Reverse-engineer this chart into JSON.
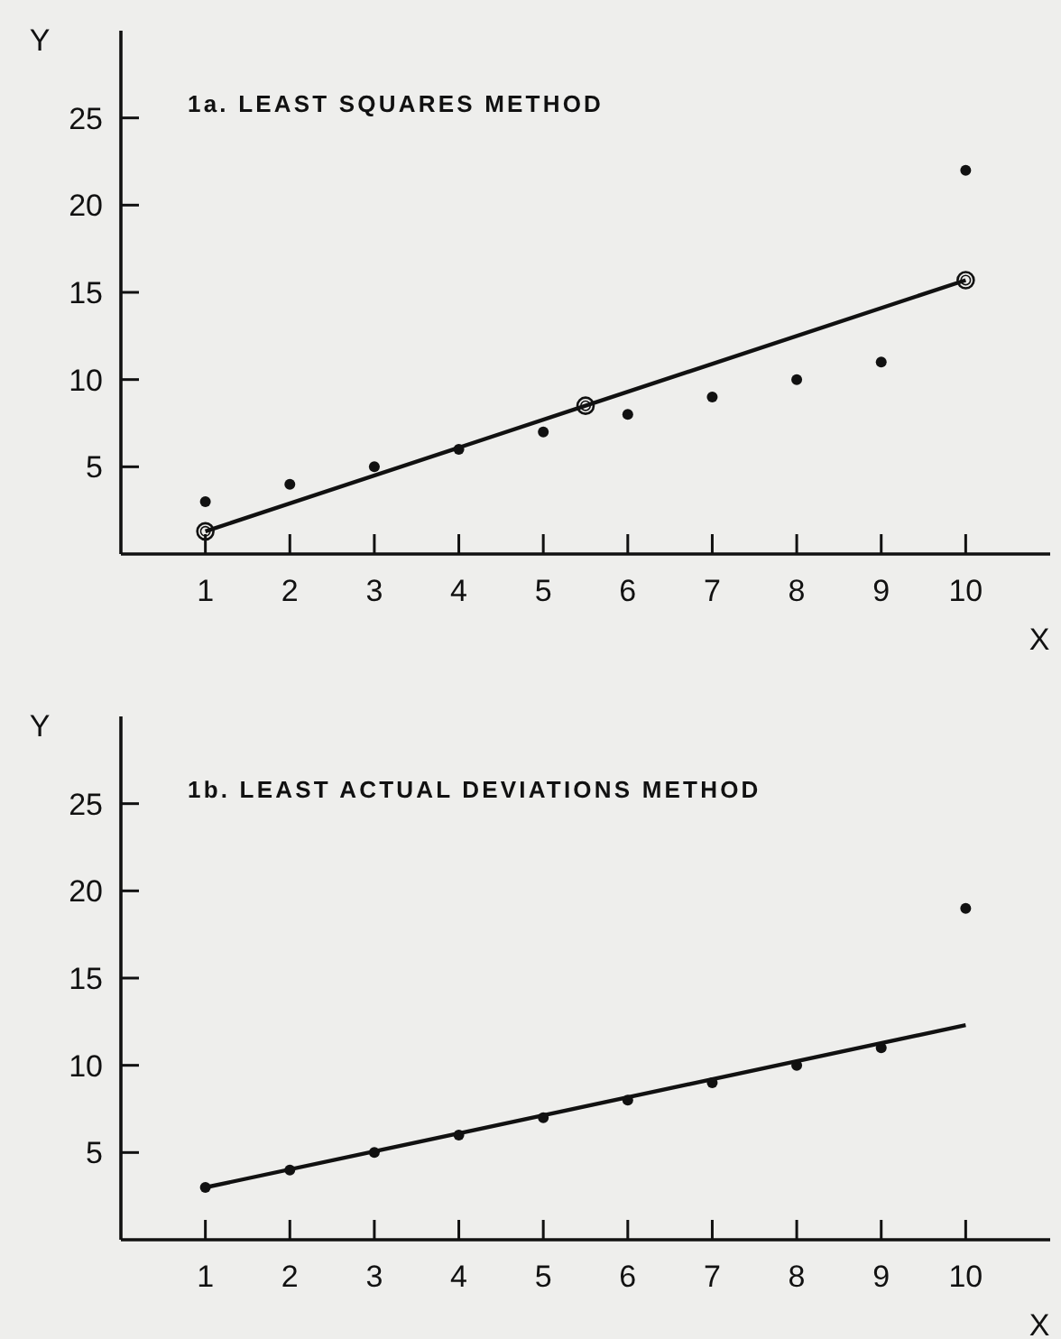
{
  "chart_data": [
    {
      "type": "scatter",
      "title": "1a. LEAST SQUARES METHOD",
      "xlabel": "X",
      "ylabel": "Y",
      "x": [
        1,
        2,
        3,
        4,
        5,
        6,
        7,
        8,
        9,
        10
      ],
      "xlim": [
        0,
        11
      ],
      "ylim": [
        0,
        30
      ],
      "xticks": [
        1,
        2,
        3,
        4,
        5,
        6,
        7,
        8,
        9,
        10
      ],
      "yticks": [
        5,
        10,
        15,
        20,
        25
      ],
      "marker": "circle",
      "series": [
        {
          "color": "#111111",
          "values": [
            3,
            4,
            5,
            6,
            7,
            8,
            9,
            10,
            11,
            22
          ]
        },
        {
          "type": "line",
          "color": "#111111",
          "x": [
            1,
            5.5,
            10
          ],
          "values": [
            1.3,
            8.5,
            15.7
          ],
          "marker": "circle"
        }
      ]
    },
    {
      "type": "scatter",
      "title": "1b. LEAST ACTUAL DEVIATIONS METHOD",
      "xlabel": "X",
      "ylabel": "Y",
      "x": [
        1,
        2,
        3,
        4,
        5,
        6,
        7,
        8,
        9,
        10
      ],
      "xlim": [
        0,
        11
      ],
      "ylim": [
        0,
        30
      ],
      "xticks": [
        1,
        2,
        3,
        4,
        5,
        6,
        7,
        8,
        9,
        10
      ],
      "yticks": [
        5,
        10,
        15,
        20,
        25
      ],
      "marker": "circle",
      "series": [
        {
          "color": "#111111",
          "values": [
            3,
            4,
            5,
            6,
            7,
            8,
            9,
            10,
            11,
            19
          ]
        },
        {
          "type": "line",
          "color": "#111111",
          "x": [
            1,
            10
          ],
          "values": [
            3,
            12.3
          ],
          "marker": "none"
        }
      ]
    }
  ]
}
